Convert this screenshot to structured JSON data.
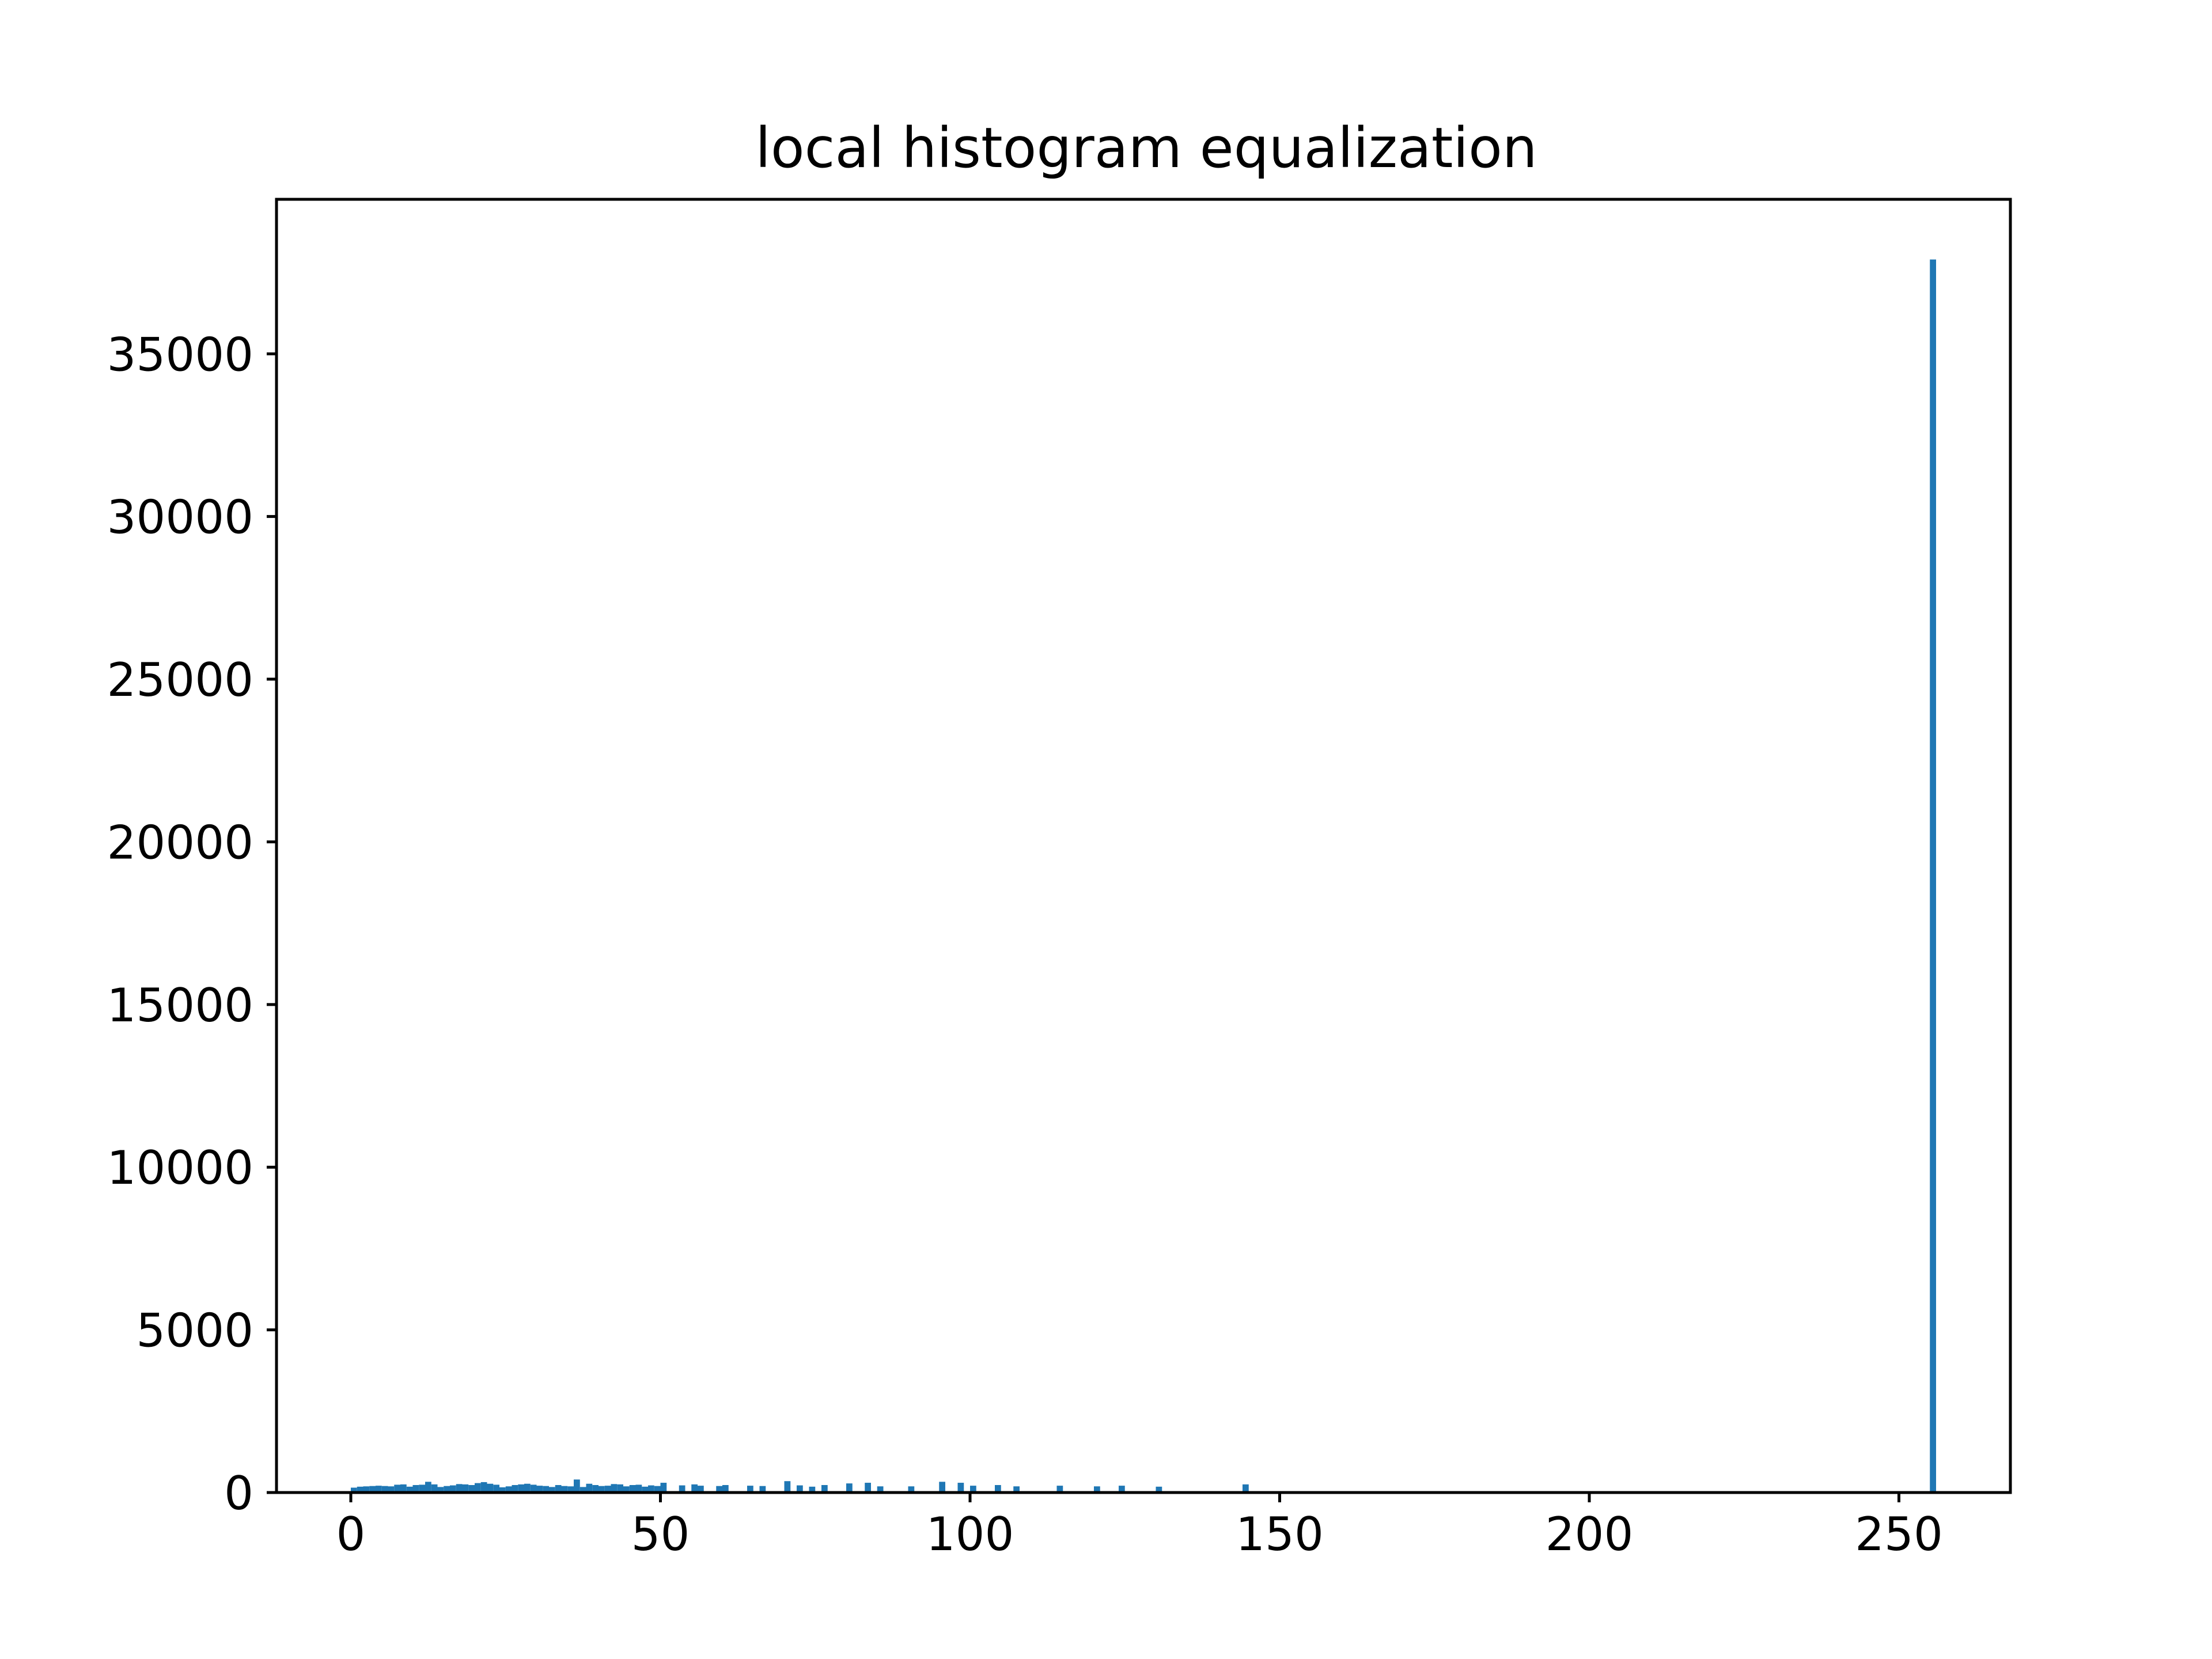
{
  "chart_data": {
    "type": "bar",
    "title": "local histogram equalization",
    "xlabel": "",
    "ylabel": "",
    "xlim": [
      -12,
      268
    ],
    "ylim": [
      0,
      39750
    ],
    "xticks": [
      0,
      50,
      100,
      150,
      200,
      250
    ],
    "yticks": [
      0,
      5000,
      10000,
      15000,
      20000,
      25000,
      30000,
      35000
    ],
    "grid": false,
    "bar_color": "#1f77b4",
    "bin_width": 1,
    "x_start": 0,
    "values": [
      150,
      180,
      190,
      200,
      210,
      200,
      190,
      240,
      250,
      180,
      230,
      240,
      330,
      250,
      170,
      200,
      220,
      260,
      250,
      230,
      290,
      320,
      270,
      240,
      160,
      190,
      230,
      250,
      270,
      240,
      210,
      200,
      170,
      230,
      200,
      190,
      400,
      170,
      270,
      230,
      200,
      210,
      260,
      250,
      190,
      230,
      240,
      180,
      220,
      200,
      300,
      0,
      0,
      220,
      0,
      250,
      210,
      0,
      0,
      200,
      230,
      0,
      0,
      0,
      210,
      0,
      200,
      0,
      0,
      0,
      350,
      0,
      220,
      0,
      180,
      0,
      230,
      0,
      0,
      0,
      280,
      0,
      0,
      300,
      0,
      190,
      0,
      0,
      0,
      0,
      190,
      0,
      0,
      0,
      0,
      330,
      0,
      0,
      300,
      0,
      210,
      0,
      0,
      0,
      230,
      0,
      0,
      190,
      0,
      0,
      0,
      0,
      0,
      0,
      210,
      0,
      0,
      0,
      0,
      0,
      190,
      0,
      0,
      0,
      210,
      0,
      0,
      0,
      0,
      0,
      180,
      0,
      0,
      0,
      0,
      0,
      0,
      0,
      0,
      0,
      0,
      0,
      0,
      0,
      250,
      0,
      0,
      0,
      0,
      0,
      0,
      0,
      0,
      0,
      0,
      0,
      0,
      0,
      0,
      0,
      0,
      0,
      0,
      0,
      0,
      0,
      0,
      0,
      0,
      0,
      0,
      0,
      0,
      0,
      0,
      0,
      0,
      0,
      0,
      0,
      0,
      0,
      0,
      0,
      0,
      0,
      0,
      0,
      0,
      0,
      0,
      0,
      0,
      0,
      0,
      0,
      0,
      0,
      0,
      0,
      0,
      0,
      0,
      0,
      0,
      0,
      0,
      0,
      0,
      0,
      0,
      0,
      0,
      0,
      0,
      0,
      0,
      0,
      0,
      0,
      0,
      0,
      0,
      0,
      0,
      0,
      0,
      0,
      0,
      0,
      0,
      0,
      0,
      0,
      0,
      0,
      0,
      0,
      0,
      0,
      0,
      0,
      0,
      0,
      0,
      0,
      0,
      0,
      0,
      0,
      0,
      0,
      0,
      0,
      0,
      37900
    ]
  }
}
